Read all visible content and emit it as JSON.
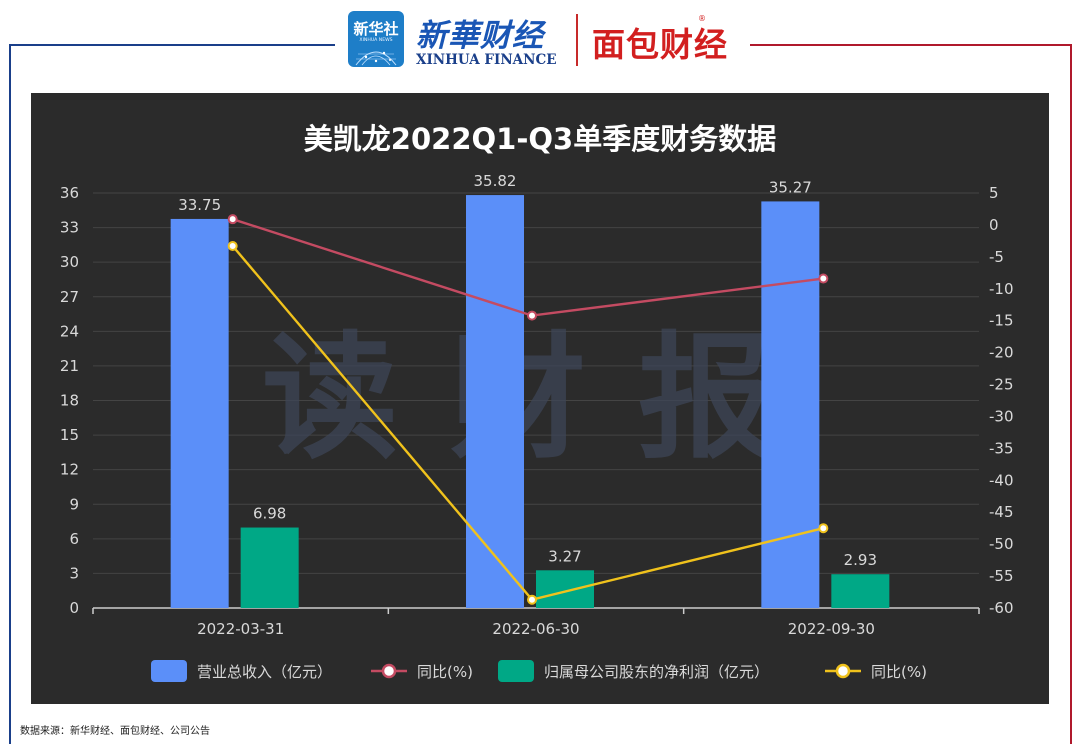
{
  "header": {
    "xinhua_news_logo_cn": "新华社",
    "xinhua_news_logo_en": "XINHUA NEWS",
    "xinhua_finance_cn": "新華财经",
    "xinhua_finance_en": "XINHUA FINANCE",
    "mianbao_logo": "面包财经",
    "registered_mark": "®"
  },
  "watermark": "读财报",
  "source_note": "数据来源：新华财经、面包财经、公司公告",
  "colors": {
    "background": "#2b2b2b",
    "revenue_bar": "#5b8ff9",
    "profit_bar": "#00a886",
    "revenue_yoy_line": "#c44b62",
    "profit_yoy_line": "#f0c21c",
    "text": "#d9d9d9",
    "title": "#ffffff"
  },
  "chart_data": {
    "type": "bar",
    "title": "美凯龙2022Q1-Q3单季度财务数据",
    "categories": [
      "2022-03-31",
      "2022-06-30",
      "2022-09-30"
    ],
    "y_left": {
      "min": 0,
      "max": 36,
      "ticks": [
        "0",
        "3",
        "6",
        "9",
        "12",
        "15",
        "18",
        "21",
        "24",
        "27",
        "30",
        "33",
        "36"
      ]
    },
    "y_right": {
      "min": -60,
      "max": 5,
      "ticks": [
        "5",
        "0",
        "-5",
        "-10",
        "-15",
        "-20",
        "-25",
        "-30",
        "-35",
        "-40",
        "-45",
        "-50",
        "-55",
        "-60"
      ]
    },
    "series": [
      {
        "name": "营业总收入（亿元）",
        "type": "bar",
        "axis": "left",
        "values": [
          33.75,
          35.82,
          35.27
        ],
        "labels": [
          "33.75",
          "35.82",
          "35.27"
        ]
      },
      {
        "name": "同比(%)",
        "type": "line",
        "axis": "right",
        "values": [
          0.9,
          -14.2,
          -8.4
        ]
      },
      {
        "name": "归属母公司股东的净利润（亿元）",
        "type": "bar",
        "axis": "left",
        "values": [
          6.98,
          3.27,
          2.93
        ],
        "labels": [
          "6.98",
          "3.27",
          "2.93"
        ]
      },
      {
        "name": "同比(%)",
        "type": "line",
        "axis": "right",
        "values": [
          -3.3,
          -58.7,
          -47.5
        ]
      }
    ],
    "legend_position": "bottom",
    "grid": true
  }
}
